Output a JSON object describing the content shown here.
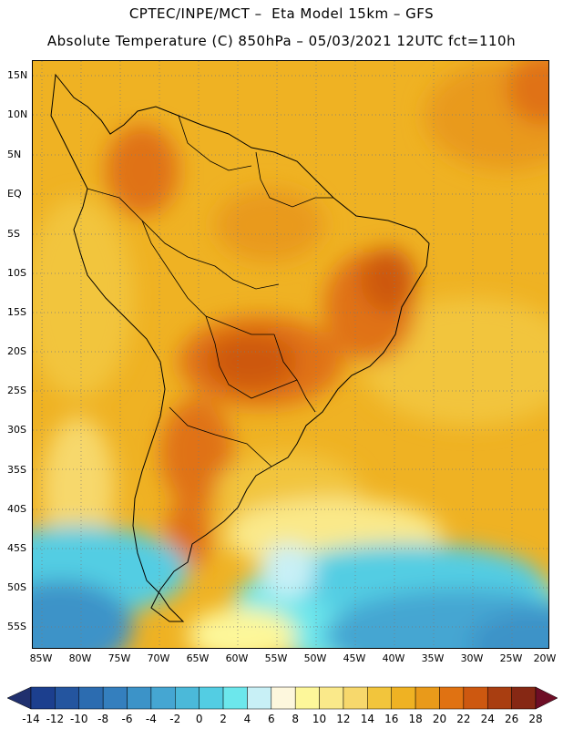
{
  "header": {
    "line1": "CPTEC/INPE/MCT –  Eta Model 15km – GFS",
    "line2": "Absolute Temperature (C) 850hPa – 05/03/2021 12UTC fct=110h"
  },
  "axes": {
    "lat_labels": [
      "15N",
      "10N",
      "5N",
      "EQ",
      "5S",
      "10S",
      "15S",
      "20S",
      "25S",
      "30S",
      "35S",
      "40S",
      "45S",
      "50S",
      "55S"
    ],
    "lon_labels": [
      "85W",
      "80W",
      "75W",
      "70W",
      "65W",
      "60W",
      "55W",
      "50W",
      "45W",
      "40W",
      "35W",
      "30W",
      "25W",
      "20W"
    ]
  },
  "legend": {
    "labels": [
      "-14",
      "-12",
      "-10",
      "-8",
      "-6",
      "-4",
      "-2",
      "0",
      "2",
      "4",
      "6",
      "8",
      "10",
      "12",
      "14",
      "16",
      "18",
      "20",
      "22",
      "24",
      "26",
      "28"
    ],
    "colors": [
      "#1c3f8e",
      "#24559f",
      "#2c6cb0",
      "#347fbe",
      "#3c93c8",
      "#45a6d2",
      "#4bb9d9",
      "#53cde3",
      "#6ce7ec",
      "#c8f0f6",
      "#fdf7dd",
      "#fdf79a",
      "#fae98a",
      "#f7d86c",
      "#f2c53c",
      "#efb223",
      "#e99a1a",
      "#e07212",
      "#cd5810",
      "#a93e11",
      "#862814"
    ],
    "under_color": "#20306e",
    "over_color": "#6e0e26"
  }
}
